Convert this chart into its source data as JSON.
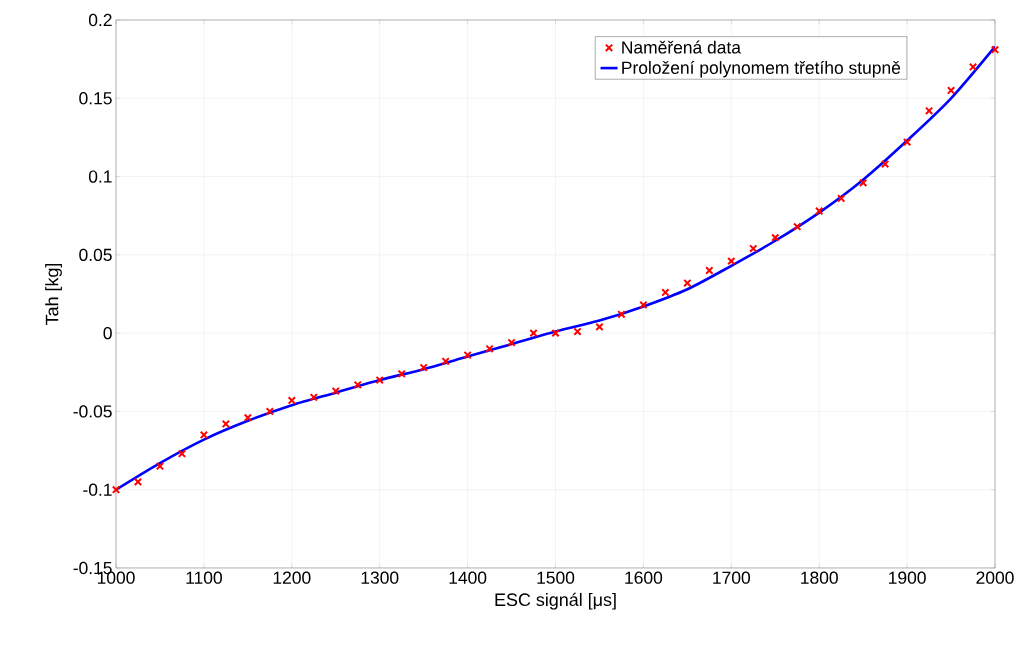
{
  "chart_data": {
    "type": "scatter",
    "xlabel": "ESC signál [μs]",
    "ylabel": "Tah [kg]",
    "xlim": [
      1000,
      2000
    ],
    "xticks": [
      1000,
      1100,
      1200,
      1300,
      1400,
      1500,
      1600,
      1700,
      1800,
      1900,
      2000
    ],
    "ylim": [
      -0.15,
      0.2
    ],
    "yticks": [
      -0.15,
      -0.1,
      -0.05,
      0,
      0.05,
      0.1,
      0.15,
      0.2
    ],
    "grid": true,
    "legend": "top right",
    "series": [
      {
        "name": "Naměřená data",
        "color": "#ff0000",
        "marker": "cross",
        "x": [
          1000,
          1025,
          1050,
          1075,
          1100,
          1125,
          1150,
          1175,
          1200,
          1225,
          1250,
          1275,
          1300,
          1325,
          1350,
          1375,
          1400,
          1425,
          1450,
          1475,
          1500,
          1525,
          1550,
          1575,
          1600,
          1625,
          1650,
          1675,
          1700,
          1725,
          1750,
          1775,
          1800,
          1825,
          1850,
          1875,
          1900,
          1925,
          1950,
          1975,
          2000
        ],
        "values": [
          -0.1,
          -0.095,
          -0.085,
          -0.077,
          -0.065,
          -0.058,
          -0.054,
          -0.05,
          -0.043,
          -0.041,
          -0.037,
          -0.033,
          -0.03,
          -0.026,
          -0.022,
          -0.018,
          -0.014,
          -0.01,
          -0.006,
          0.0,
          0.0,
          0.001,
          0.004,
          0.012,
          0.018,
          0.026,
          0.032,
          0.04,
          0.046,
          0.054,
          0.061,
          0.068,
          0.078,
          0.086,
          0.096,
          0.108,
          0.122,
          0.142,
          0.155,
          0.17,
          0.181
        ]
      },
      {
        "name": "Proložení polynomem třetího stupně",
        "type": "line",
        "color": "#0000ff",
        "marker": "none",
        "line_style": "solid",
        "x": [
          1000,
          1050,
          1100,
          1150,
          1200,
          1250,
          1300,
          1350,
          1400,
          1450,
          1500,
          1550,
          1600,
          1650,
          1700,
          1750,
          1800,
          1850,
          1900,
          1950,
          2000
        ],
        "values": [
          -0.1,
          -0.083,
          -0.068,
          -0.056,
          -0.046,
          -0.038,
          -0.03,
          -0.023,
          -0.015,
          -0.007,
          0.001,
          0.008,
          0.017,
          0.028,
          0.043,
          0.059,
          0.077,
          0.098,
          0.123,
          0.15,
          0.183
        ]
      }
    ]
  }
}
